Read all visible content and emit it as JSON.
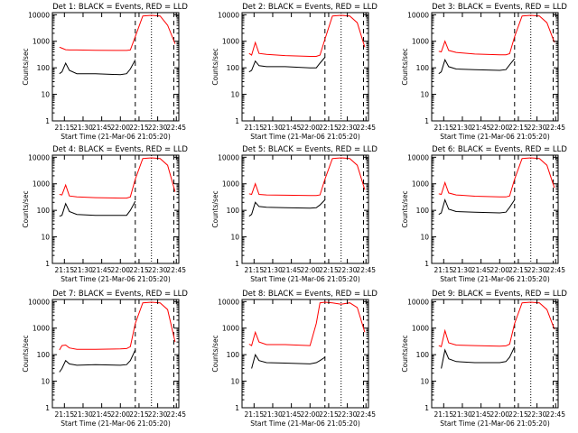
{
  "colors": {
    "events": "#000000",
    "lld": "#ff0000",
    "axis": "#000000",
    "background": "#ffffff"
  },
  "shared": {
    "ylabel": "Counts/sec",
    "xlabel": "Start Time (21-Mar-06 21:05:20)",
    "xticks": [
      "21:15",
      "21:30",
      "21:45",
      "22:00",
      "22:15",
      "22:30",
      "22:45"
    ],
    "yticks": [
      "1",
      "10",
      "100",
      "1000",
      "10000"
    ]
  },
  "chart_data": [
    {
      "type": "line",
      "title": "Det 1: BLACK = Events, RED = LLD",
      "xlabel": "Start Time (21-Mar-06 21:05:20)",
      "ylabel": "Counts/sec",
      "xlim": [
        "21:05:20",
        "22:47:00"
      ],
      "ylim": [
        1,
        12000
      ],
      "yscale": "log",
      "x": [
        "21:11",
        "21:13",
        "21:16",
        "21:19",
        "21:25",
        "21:40",
        "22:00",
        "22:05",
        "22:08",
        "22:12",
        "22:18",
        "22:25",
        "22:32",
        "22:38",
        "22:44"
      ],
      "series": [
        {
          "name": "Events",
          "values": [
            60,
            70,
            150,
            80,
            60,
            60,
            55,
            60,
            90,
            200,
            null,
            null,
            null,
            null,
            null
          ]
        },
        {
          "name": "LLD",
          "values": [
            600,
            550,
            480,
            470,
            470,
            460,
            450,
            450,
            470,
            1500,
            9000,
            9500,
            9000,
            4000,
            800
          ]
        }
      ],
      "vlines_dashed": [
        "22:12",
        "22:43"
      ],
      "vlines_dotted": [
        "22:25"
      ]
    },
    {
      "type": "line",
      "title": "Det 2: BLACK = Events, RED = LLD",
      "xlabel": "Start Time (21-Mar-06 21:05:20)",
      "ylabel": "Counts/sec",
      "xlim": [
        "21:05:20",
        "22:47:00"
      ],
      "ylim": [
        1,
        12000
      ],
      "yscale": "log",
      "x": [
        "21:11",
        "21:13",
        "21:16",
        "21:19",
        "21:25",
        "21:40",
        "22:00",
        "22:05",
        "22:08",
        "22:12",
        "22:18",
        "22:25",
        "22:32",
        "22:38",
        "22:44"
      ],
      "series": [
        {
          "name": "Events",
          "values": [
            70,
            80,
            180,
            120,
            110,
            110,
            100,
            100,
            150,
            250,
            null,
            null,
            null,
            null,
            null
          ]
        },
        {
          "name": "LLD",
          "values": [
            350,
            300,
            900,
            350,
            320,
            290,
            270,
            270,
            300,
            1200,
            9000,
            9500,
            9000,
            5000,
            600
          ]
        }
      ],
      "vlines_dashed": [
        "22:12",
        "22:43"
      ],
      "vlines_dotted": [
        "22:25"
      ]
    },
    {
      "type": "line",
      "title": "Det 3: BLACK = Events, RED = LLD",
      "xlabel": "Start Time (21-Mar-06 21:05:20)",
      "ylabel": "Counts/sec",
      "xlim": [
        "21:05:20",
        "22:47:00"
      ],
      "ylim": [
        1,
        12000
      ],
      "yscale": "log",
      "x": [
        "21:11",
        "21:13",
        "21:16",
        "21:19",
        "21:25",
        "21:40",
        "22:00",
        "22:05",
        "22:08",
        "22:12",
        "22:18",
        "22:25",
        "22:32",
        "22:38",
        "22:44"
      ],
      "series": [
        {
          "name": "Events",
          "values": [
            60,
            70,
            200,
            110,
            90,
            85,
            80,
            85,
            130,
            220,
            null,
            null,
            null,
            null,
            null
          ]
        },
        {
          "name": "LLD",
          "values": [
            420,
            400,
            1000,
            450,
            380,
            330,
            310,
            310,
            340,
            1500,
            9000,
            9500,
            9000,
            5000,
            900
          ]
        }
      ],
      "vlines_dashed": [
        "22:12",
        "22:43"
      ],
      "vlines_dotted": [
        "22:25"
      ]
    },
    {
      "type": "line",
      "title": "Det 4: BLACK = Events, RED = LLD",
      "xlabel": "Start Time (21-Mar-06 21:05:20)",
      "ylabel": "Counts/sec",
      "xlim": [
        "21:05:20",
        "22:47:00"
      ],
      "ylim": [
        1,
        12000
      ],
      "yscale": "log",
      "x": [
        "21:11",
        "21:13",
        "21:16",
        "21:19",
        "21:25",
        "21:40",
        "22:00",
        "22:05",
        "22:08",
        "22:12",
        "22:18",
        "22:25",
        "22:32",
        "22:38",
        "22:44"
      ],
      "series": [
        {
          "name": "Events",
          "values": [
            60,
            65,
            180,
            90,
            70,
            65,
            65,
            65,
            100,
            220,
            null,
            null,
            null,
            null,
            null
          ]
        },
        {
          "name": "LLD",
          "values": [
            400,
            380,
            900,
            350,
            320,
            300,
            290,
            290,
            320,
            1500,
            9000,
            9500,
            9000,
            5000,
            500
          ]
        }
      ],
      "vlines_dashed": [
        "22:12",
        "22:43"
      ],
      "vlines_dotted": [
        "22:25"
      ]
    },
    {
      "type": "line",
      "title": "Det 5: BLACK = Events, RED = LLD",
      "xlabel": "Start Time (21-Mar-06 21:05:20)",
      "ylabel": "Counts/sec",
      "xlim": [
        "21:05:20",
        "22:47:00"
      ],
      "ylim": [
        1,
        12000
      ],
      "yscale": "log",
      "x": [
        "21:11",
        "21:13",
        "21:16",
        "21:19",
        "21:25",
        "21:40",
        "22:00",
        "22:05",
        "22:08",
        "22:12",
        "22:18",
        "22:25",
        "22:32",
        "22:38",
        "22:44"
      ],
      "series": [
        {
          "name": "Events",
          "values": [
            60,
            70,
            200,
            140,
            130,
            125,
            120,
            125,
            160,
            250,
            null,
            null,
            null,
            null,
            null
          ]
        },
        {
          "name": "LLD",
          "values": [
            420,
            400,
            1000,
            400,
            380,
            370,
            360,
            360,
            380,
            1500,
            9000,
            9500,
            9000,
            5000,
            600
          ]
        }
      ],
      "vlines_dashed": [
        "22:12",
        "22:43"
      ],
      "vlines_dotted": [
        "22:25"
      ]
    },
    {
      "type": "line",
      "title": "Det 6: BLACK = Events, RED = LLD",
      "xlabel": "Start Time (21-Mar-06 21:05:20)",
      "ylabel": "Counts/sec",
      "xlim": [
        "21:05:20",
        "22:47:00"
      ],
      "ylim": [
        1,
        12000
      ],
      "yscale": "log",
      "x": [
        "21:11",
        "21:13",
        "21:16",
        "21:19",
        "21:25",
        "21:40",
        "22:00",
        "22:05",
        "22:08",
        "22:12",
        "22:18",
        "22:25",
        "22:32",
        "22:38",
        "22:44"
      ],
      "series": [
        {
          "name": "Events",
          "values": [
            70,
            80,
            250,
            110,
            90,
            85,
            80,
            85,
            130,
            250,
            null,
            null,
            null,
            null,
            null
          ]
        },
        {
          "name": "LLD",
          "values": [
            420,
            400,
            1100,
            450,
            380,
            340,
            320,
            320,
            350,
            1500,
            9000,
            9500,
            9000,
            5000,
            700
          ]
        }
      ],
      "vlines_dashed": [
        "22:12",
        "22:43"
      ],
      "vlines_dotted": [
        "22:25"
      ]
    },
    {
      "type": "line",
      "title": "Det 7: BLACK = Events, RED = LLD",
      "xlabel": "Start Time (21-Mar-06 21:05:20)",
      "ylabel": "Counts/sec",
      "xlim": [
        "21:05:20",
        "22:47:00"
      ],
      "ylim": [
        1,
        12000
      ],
      "yscale": "log",
      "x": [
        "21:11",
        "21:13",
        "21:16",
        "21:19",
        "21:25",
        "21:40",
        "22:00",
        "22:05",
        "22:08",
        "22:12",
        "22:18",
        "22:25",
        "22:32",
        "22:38",
        "22:44"
      ],
      "series": [
        {
          "name": "Events",
          "values": [
            22,
            30,
            60,
            45,
            40,
            42,
            40,
            42,
            60,
            150,
            null,
            null,
            null,
            null,
            null
          ]
        },
        {
          "name": "LLD",
          "values": [
            150,
            220,
            230,
            180,
            160,
            160,
            165,
            170,
            200,
            1500,
            9000,
            9500,
            9000,
            5000,
            300
          ]
        }
      ],
      "vlines_dashed": [
        "22:12",
        "22:43"
      ],
      "vlines_dotted": [
        "22:25"
      ]
    },
    {
      "type": "line",
      "title": "Det 8: BLACK = Events, RED = LLD",
      "xlabel": "Start Time (21-Mar-06 21:05:20)",
      "ylabel": "Counts/sec",
      "xlim": [
        "21:05:20",
        "22:47:00"
      ],
      "ylim": [
        1,
        12000
      ],
      "yscale": "log",
      "x": [
        "21:11",
        "21:13",
        "21:16",
        "21:19",
        "21:25",
        "21:40",
        "22:00",
        "22:05",
        "22:08",
        "22:12",
        "22:18",
        "22:25",
        "22:32",
        "22:38",
        "22:44"
      ],
      "series": [
        {
          "name": "Events",
          "values": [
            null,
            30,
            100,
            60,
            50,
            48,
            45,
            50,
            60,
            80,
            null,
            null,
            null,
            null,
            null
          ]
        },
        {
          "name": "LLD",
          "values": [
            250,
            220,
            700,
            300,
            240,
            240,
            220,
            1500,
            9000,
            9500,
            9000,
            8000,
            9000,
            6000,
            700
          ]
        }
      ],
      "vlines_dashed": [
        "22:12",
        "22:43"
      ],
      "vlines_dotted": [
        "22:25"
      ]
    },
    {
      "type": "line",
      "title": "Det 9: BLACK = Events, RED = LLD",
      "xlabel": "Start Time (21-Mar-06 21:05:20)",
      "ylabel": "Counts/sec",
      "xlim": [
        "21:05:20",
        "22:47:00"
      ],
      "ylim": [
        1,
        12000
      ],
      "yscale": "log",
      "x": [
        "21:11",
        "21:13",
        "21:16",
        "21:19",
        "21:25",
        "21:40",
        "22:00",
        "22:05",
        "22:08",
        "22:12",
        "22:18",
        "22:25",
        "22:32",
        "22:38",
        "22:44"
      ],
      "series": [
        {
          "name": "Events",
          "values": [
            null,
            30,
            150,
            70,
            55,
            50,
            50,
            55,
            80,
            200,
            null,
            null,
            null,
            null,
            null
          ]
        },
        {
          "name": "LLD",
          "values": [
            220,
            200,
            800,
            280,
            230,
            220,
            210,
            215,
            250,
            1500,
            9000,
            9500,
            9000,
            5000,
            900
          ]
        }
      ],
      "vlines_dashed": [
        "22:12",
        "22:43"
      ],
      "vlines_dotted": [
        "22:25"
      ]
    }
  ]
}
